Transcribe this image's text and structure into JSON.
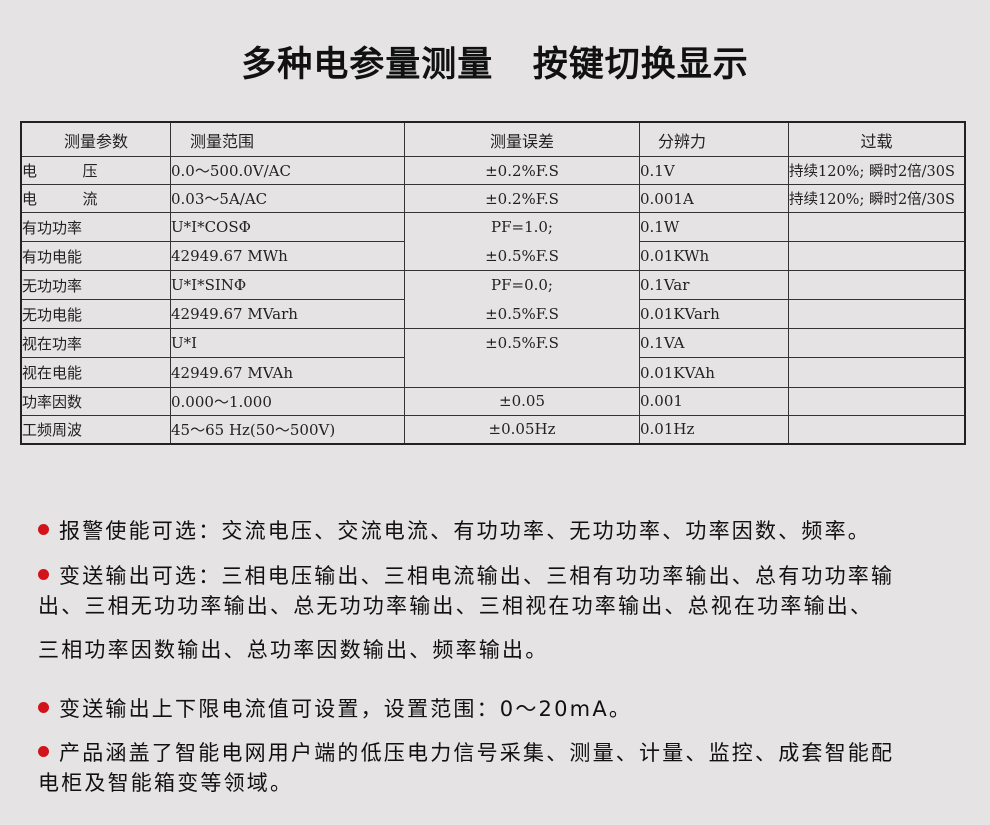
{
  "title": "多种电参量测量   按键切换显示",
  "table": {
    "headers": [
      "测量参数",
      "测量范围",
      "测量误差",
      "分辨力",
      "过载"
    ],
    "rows": [
      {
        "param": "电  压",
        "range": "0.0～500.0V/AC",
        "error": "±0.2%F.S",
        "resolution": "0.1V",
        "overload": "持续120%; 瞬时2倍/30S"
      },
      {
        "param": "电  流",
        "range": "0.03～5A/AC",
        "error": "±0.2%F.S",
        "resolution": "0.001A",
        "overload": "持续120%; 瞬时2倍/30S"
      },
      {
        "param": "有功功率",
        "range": "U*I*COSΦ",
        "resolution": "0.1W",
        "overload": ""
      },
      {
        "param": "有功电能",
        "range": "42949.67 MWh",
        "resolution": "0.01KWh",
        "overload": ""
      },
      {
        "param": "无功功率",
        "range": "U*I*SINΦ",
        "resolution": "0.1Var",
        "overload": ""
      },
      {
        "param": "无功电能",
        "range": "42949.67 MVarh",
        "resolution": "0.01KVarh",
        "overload": ""
      },
      {
        "param": "视在功率",
        "range": "U*I",
        "resolution": "0.1VA",
        "overload": ""
      },
      {
        "param": "视在电能",
        "range": "42949.67 MVAh",
        "resolution": "0.01KVAh",
        "overload": ""
      },
      {
        "param": "功率因数",
        "range": "0.000～1.000",
        "error": "±0.05",
        "resolution": "0.001",
        "overload": ""
      },
      {
        "param": "工频周波",
        "range": "45～65 Hz(50～500V)",
        "error": "±0.05Hz",
        "resolution": "0.01Hz",
        "overload": ""
      }
    ],
    "merged_errors": [
      {
        "line1": "PF=1.0;",
        "line2": "±0.5%F.S"
      },
      {
        "line1": "PF=0.0;",
        "line2": "±0.5%F.S"
      },
      {
        "line1": "±0.5%F.S",
        "line2": ""
      }
    ]
  },
  "bullets": [
    {
      "lines": [
        "报警使能可选：交流电压、交流电流、有功功率、无功功率、功率因数、频率。"
      ]
    },
    {
      "lines": [
        "变送输出可选：三相电压输出、三相电流输出、三相有功功率输出、总有功功率输",
        "出、三相无功功率输出、总无功功率输出、三相视在功率输出、总视在功率输出、",
        "三相功率因数输出、总功率因数输出、频率输出。"
      ]
    },
    {
      "lines": [
        "变送输出上下限电流值可设置，设置范围：0～20mA。"
      ]
    },
    {
      "lines": [
        "产品涵盖了智能电网用户端的低压电力信号采集、测量、计量、监控、成套智能配",
        "电柜及智能箱变等领域。"
      ]
    }
  ],
  "colors": {
    "background": "#e5e3e4",
    "bullet": "#d2141a"
  }
}
